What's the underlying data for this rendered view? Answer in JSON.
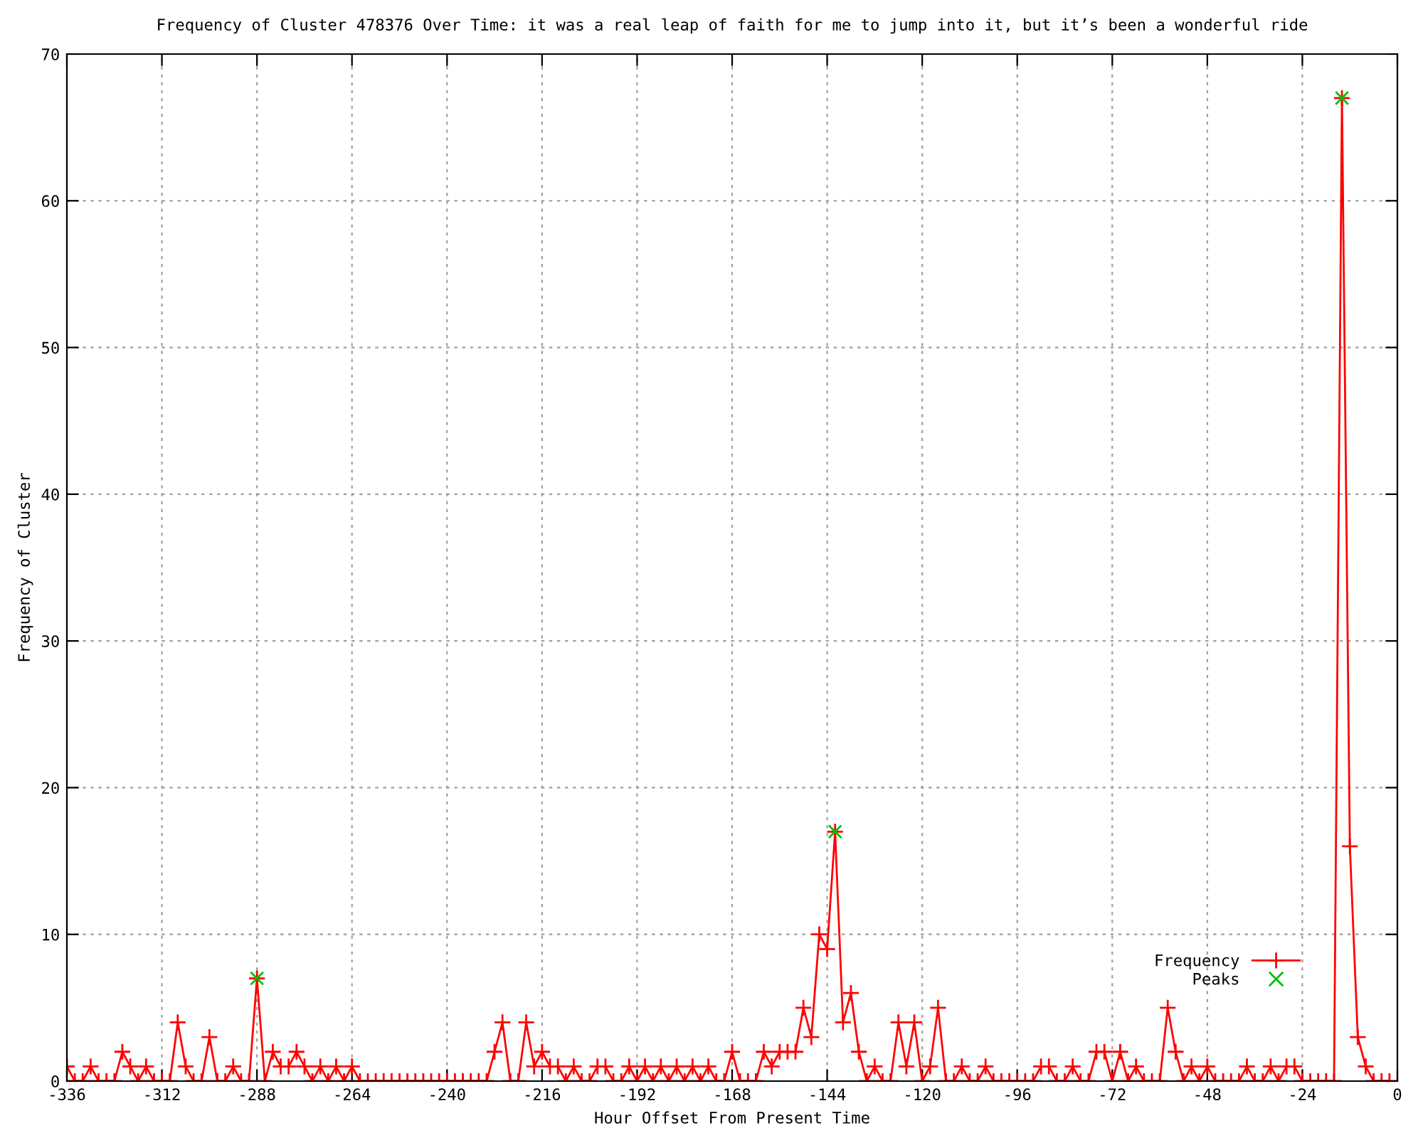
{
  "chart_data": {
    "type": "line",
    "title": "Frequency of Cluster 478376 Over Time: it was a real leap of faith for me to jump into it, but it’s been a wonderful ride",
    "xlabel": "Hour Offset From Present Time",
    "ylabel": "Frequency of Cluster",
    "x": [
      -336,
      -334,
      -332,
      -330,
      -328,
      -326,
      -324,
      -322,
      -320,
      -318,
      -316,
      -314,
      -312,
      -310,
      -308,
      -306,
      -304,
      -302,
      -300,
      -298,
      -296,
      -294,
      -292,
      -290,
      -288,
      -286,
      -284,
      -282,
      -280,
      -278,
      -276,
      -274,
      -272,
      -270,
      -268,
      -266,
      -264,
      -262,
      -260,
      -258,
      -256,
      -254,
      -252,
      -250,
      -248,
      -246,
      -244,
      -242,
      -240,
      -238,
      -236,
      -234,
      -232,
      -230,
      -228,
      -226,
      -224,
      -222,
      -220,
      -218,
      -216,
      -214,
      -212,
      -210,
      -208,
      -206,
      -204,
      -202,
      -200,
      -198,
      -196,
      -194,
      -192,
      -190,
      -188,
      -186,
      -184,
      -182,
      -180,
      -178,
      -176,
      -174,
      -172,
      -170,
      -168,
      -166,
      -164,
      -162,
      -160,
      -158,
      -156,
      -154,
      -152,
      -150,
      -148,
      -146,
      -144,
      -142,
      -140,
      -138,
      -136,
      -134,
      -132,
      -130,
      -128,
      -126,
      -124,
      -122,
      -120,
      -118,
      -116,
      -114,
      -112,
      -110,
      -108,
      -106,
      -104,
      -102,
      -100,
      -98,
      -96,
      -94,
      -92,
      -90,
      -88,
      -86,
      -84,
      -82,
      -80,
      -78,
      -76,
      -74,
      -72,
      -70,
      -68,
      -66,
      -64,
      -62,
      -60,
      -58,
      -56,
      -54,
      -52,
      -50,
      -48,
      -46,
      -44,
      -42,
      -40,
      -38,
      -36,
      -34,
      -32,
      -30,
      -28,
      -26,
      -24,
      -22,
      -20,
      -18,
      -16,
      -14,
      -12,
      -10,
      -8,
      -6,
      -4,
      -2
    ],
    "series": [
      {
        "name": "Frequency",
        "color": "#ff0000",
        "marker": "cross",
        "values": [
          1,
          0,
          0,
          1,
          0,
          0,
          0,
          2,
          1,
          0,
          1,
          0,
          0,
          0,
          4,
          1,
          0,
          0,
          3,
          0,
          0,
          1,
          0,
          0,
          7,
          0,
          2,
          1,
          1,
          2,
          1,
          0,
          1,
          0,
          1,
          0,
          1,
          0,
          0,
          0,
          0,
          0,
          0,
          0,
          0,
          0,
          0,
          0,
          0,
          0,
          0,
          0,
          0,
          0,
          2,
          4,
          0,
          0,
          4,
          1,
          2,
          1,
          1,
          0,
          1,
          0,
          0,
          1,
          1,
          0,
          0,
          1,
          0,
          1,
          0,
          1,
          0,
          1,
          0,
          1,
          0,
          1,
          0,
          0,
          2,
          0,
          0,
          0,
          2,
          1,
          2,
          2,
          2,
          5,
          3,
          10,
          9,
          17,
          4,
          6,
          2,
          0,
          1,
          0,
          0,
          4,
          1,
          4,
          0,
          1,
          5,
          0,
          0,
          1,
          0,
          0,
          1,
          0,
          0,
          0,
          0,
          0,
          0,
          1,
          1,
          0,
          0,
          1,
          0,
          0,
          2,
          2,
          0,
          2,
          0,
          1,
          0,
          0,
          0,
          5,
          2,
          0,
          1,
          0,
          1,
          0,
          0,
          0,
          0,
          1,
          0,
          0,
          1,
          0,
          1,
          1,
          0,
          0,
          0,
          0,
          0,
          67,
          16,
          3,
          1,
          0,
          0,
          0
        ]
      },
      {
        "name": "Peaks",
        "type": "scatter",
        "color": "#00c000",
        "marker": "x",
        "x": [
          -288,
          -142,
          -14
        ],
        "values": [
          7,
          17,
          67
        ]
      }
    ],
    "xlim": [
      -336,
      0
    ],
    "xticks": [
      -336,
      -312,
      -288,
      -264,
      -240,
      -216,
      -192,
      -168,
      -144,
      -120,
      -96,
      -72,
      -48,
      -24,
      0
    ],
    "ylim": [
      0,
      70
    ],
    "yticks": [
      0,
      10,
      20,
      30,
      40,
      50,
      60,
      70
    ],
    "grid": true,
    "legend": "bottom right"
  }
}
